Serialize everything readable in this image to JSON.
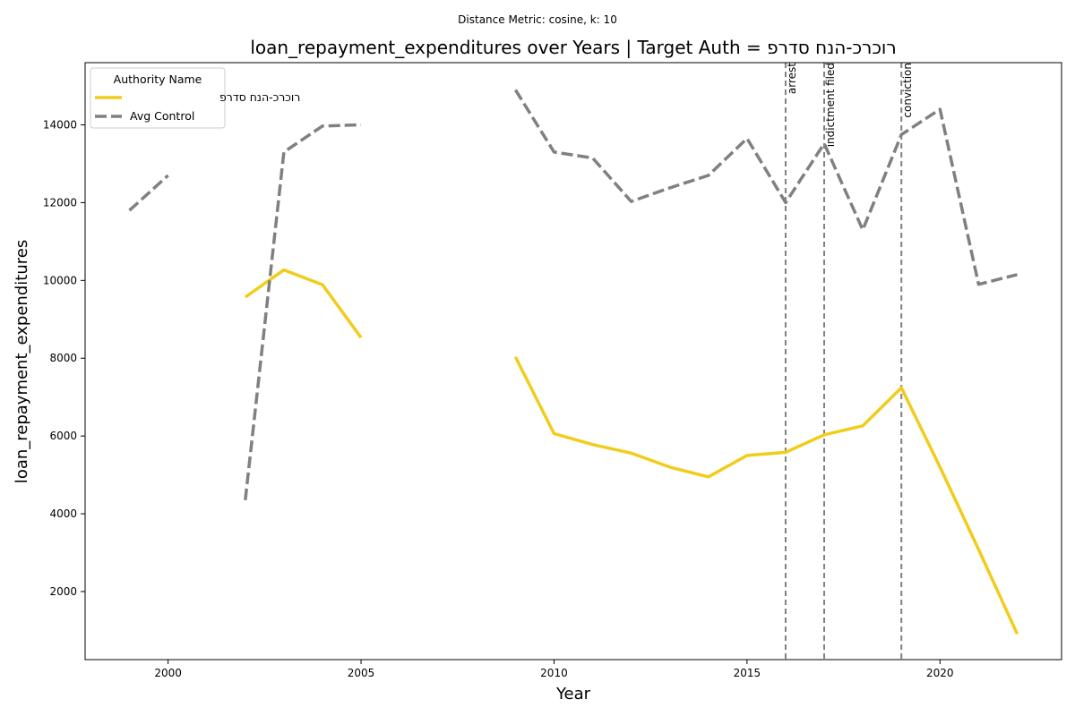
{
  "chart_data": {
    "type": "line",
    "suptitle": "Distance Metric: cosine, k: 10",
    "title": "loan_repayment_expenditures over Years | Target Auth = רוכרכ-הנח סדרפ",
    "xlabel": "Year",
    "ylabel": "loan_repayment_expenditures",
    "xlim": [
      1997.85,
      2023.15
    ],
    "ylim": [
      250,
      15600
    ],
    "xticks": [
      2000,
      2005,
      2010,
      2015,
      2020
    ],
    "yticks": [
      2000,
      4000,
      6000,
      8000,
      10000,
      12000,
      14000
    ],
    "grid": false,
    "legend": {
      "title": "Authority Name",
      "position": "top-left"
    },
    "series": [
      {
        "name": "רוכרכ-הנח סדרפ",
        "color": "#f2cc1b",
        "style": "solid",
        "points": [
          [
            2002,
            9570
          ],
          [
            2003,
            10270
          ],
          [
            2004,
            9890
          ],
          [
            2005,
            8530
          ],
          [
            2006,
            null
          ],
          [
            2007,
            null
          ],
          [
            2008,
            null
          ],
          [
            2009,
            8030
          ],
          [
            2010,
            6060
          ],
          [
            2011,
            5780
          ],
          [
            2012,
            5560
          ],
          [
            2013,
            5200
          ],
          [
            2014,
            4950
          ],
          [
            2015,
            5500
          ],
          [
            2016,
            5580
          ],
          [
            2017,
            6030
          ],
          [
            2018,
            6260
          ],
          [
            2019,
            7240
          ],
          [
            2020,
            5200
          ],
          [
            2021,
            3080
          ],
          [
            2022,
            910
          ]
        ]
      },
      {
        "name": "Avg Control",
        "color": "#808080",
        "style": "dashed",
        "points": [
          [
            1999,
            11800
          ],
          [
            2000,
            12700
          ],
          [
            2001,
            null
          ],
          [
            2002,
            4350
          ],
          [
            2003,
            13300
          ],
          [
            2004,
            13970
          ],
          [
            2005,
            14000
          ],
          [
            2006,
            null
          ],
          [
            2007,
            null
          ],
          [
            2008,
            null
          ],
          [
            2009,
            14900
          ],
          [
            2010,
            13300
          ],
          [
            2011,
            13150
          ],
          [
            2012,
            12030
          ],
          [
            2013,
            12380
          ],
          [
            2014,
            12700
          ],
          [
            2015,
            13650
          ],
          [
            2016,
            12000
          ],
          [
            2017,
            13520
          ],
          [
            2018,
            11300
          ],
          [
            2019,
            13750
          ],
          [
            2020,
            14400
          ],
          [
            2021,
            9900
          ],
          [
            2022,
            10150
          ]
        ]
      }
    ],
    "events": [
      {
        "x": 2016,
        "label": "arrest"
      },
      {
        "x": 2017,
        "label": "indictment filed"
      },
      {
        "x": 2019,
        "label": "conviction"
      }
    ]
  }
}
